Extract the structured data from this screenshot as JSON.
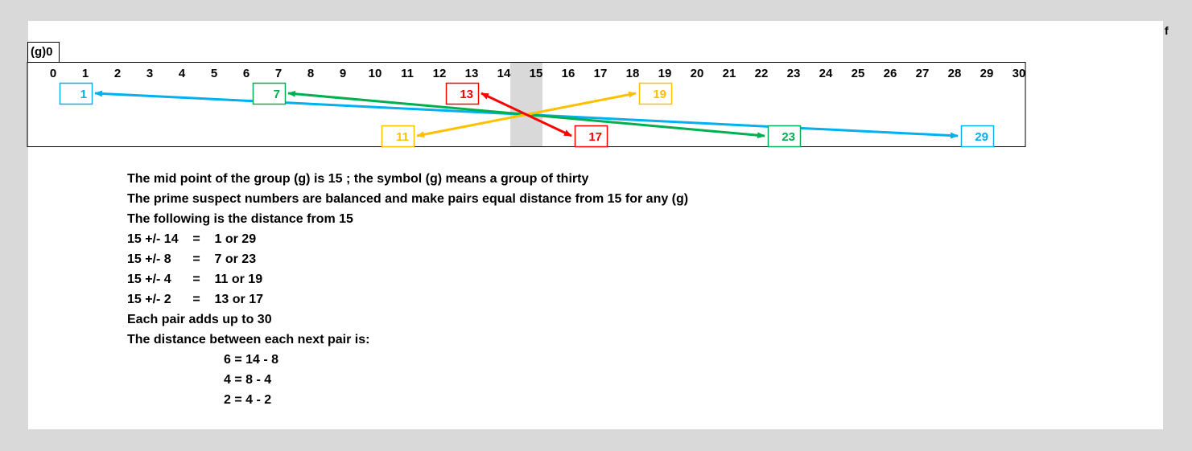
{
  "group_label": "(g)0",
  "corner_letter": "f",
  "axis_numbers": [
    "0",
    "1",
    "2",
    "3",
    "4",
    "5",
    "6",
    "7",
    "8",
    "9",
    "10",
    "11",
    "12",
    "13",
    "14",
    "15",
    "16",
    "17",
    "18",
    "19",
    "20",
    "21",
    "22",
    "23",
    "24",
    "25",
    "26",
    "27",
    "28",
    "29",
    "30"
  ],
  "midpoint": 15,
  "colors": {
    "blue": "#00b0f0",
    "green": "#00b050",
    "red": "#ff0000",
    "gold": "#ffc000",
    "shade": "#d9d9d9"
  },
  "pairs": [
    {
      "low": {
        "n": 1,
        "label": "1",
        "row": "top"
      },
      "high": {
        "n": 29,
        "label": "29",
        "row": "bottom"
      },
      "color": "blue"
    },
    {
      "low": {
        "n": 7,
        "label": "7",
        "row": "top"
      },
      "high": {
        "n": 23,
        "label": "23",
        "row": "bottom"
      },
      "color": "green"
    },
    {
      "low": {
        "n": 11,
        "label": "11",
        "row": "bottom"
      },
      "high": {
        "n": 19,
        "label": "19",
        "row": "top"
      },
      "color": "gold"
    },
    {
      "low": {
        "n": 13,
        "label": "13",
        "row": "top"
      },
      "high": {
        "n": 17,
        "label": "17",
        "row": "bottom"
      },
      "color": "red"
    }
  ],
  "notes": {
    "line1": "The mid point of the group (g) is 15 ; the symbol (g) means a group of thirty",
    "line2": "The prime suspect numbers are balanced and make pairs equal distance from 15 for any (g)",
    "line3": "The following is the distance from 15",
    "row1": "15 +/- 14    =    1 or 29",
    "row2": "15 +/- 8      =    7 or 23",
    "row3": "15 +/- 4      =    11 or 19",
    "row4": "15 +/- 2      =    13 or 17",
    "line4": "Each pair adds up to 30",
    "line5": "The distance between each next pair is:",
    "calc1": "6 = 14 - 8",
    "calc2": "4 = 8 - 4",
    "calc3": "2 = 4 - 2"
  }
}
